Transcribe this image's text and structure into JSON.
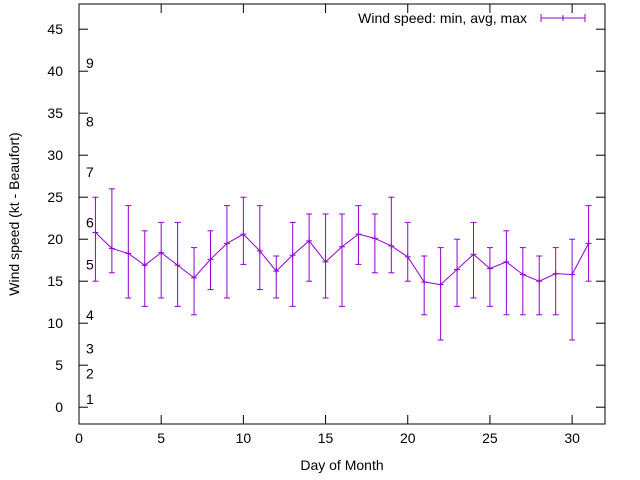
{
  "chart_data": {
    "type": "line",
    "title": "",
    "xlabel": "Day of Month",
    "ylabel": "Wind speed (kt - Beaufort)",
    "xlim": [
      0,
      32
    ],
    "ylim": [
      -2,
      48
    ],
    "x_ticks": [
      0,
      5,
      10,
      15,
      20,
      25,
      30
    ],
    "y_ticks": [
      0,
      5,
      10,
      15,
      20,
      25,
      30,
      35,
      40,
      45
    ],
    "grid": false,
    "legend_position": "top-right",
    "beaufort_labels": [
      {
        "label": "1",
        "value": 1.0
      },
      {
        "label": "2",
        "value": 4.0
      },
      {
        "label": "3",
        "value": 7.0
      },
      {
        "label": "4",
        "value": 11.0
      },
      {
        "label": "5",
        "value": 17.0
      },
      {
        "label": "6",
        "value": 22.0
      },
      {
        "label": "7",
        "value": 28.0
      },
      {
        "label": "8",
        "value": 34.0
      },
      {
        "label": "9",
        "value": 41.0
      }
    ],
    "series": [
      {
        "name": "Wind speed: min, avg, max",
        "color": "#9400d3",
        "x": [
          1,
          2,
          3,
          4,
          5,
          6,
          7,
          8,
          9,
          10,
          11,
          12,
          13,
          14,
          15,
          16,
          17,
          18,
          19,
          20,
          21,
          22,
          23,
          24,
          25,
          26,
          27,
          28,
          29,
          30,
          31
        ],
        "avg": [
          20.8,
          18.9,
          18.3,
          16.9,
          18.4,
          16.9,
          15.4,
          17.6,
          19.5,
          20.6,
          18.6,
          16.2,
          18.1,
          19.8,
          17.3,
          19.1,
          20.6,
          20.1,
          19.2,
          17.9,
          14.9,
          14.6,
          16.4,
          18.2,
          16.5,
          17.3,
          15.8,
          15.0,
          15.9,
          15.8,
          19.5
        ],
        "min": [
          15,
          16,
          13,
          12,
          13,
          12,
          11,
          14,
          13,
          17,
          14,
          13,
          12,
          15,
          13,
          12,
          17,
          16,
          16,
          15,
          11,
          8,
          12,
          13,
          12,
          11,
          11,
          11,
          11,
          8,
          15
        ],
        "max": [
          25,
          26,
          24,
          21,
          22,
          22,
          19,
          21,
          24,
          25,
          24,
          18,
          22,
          23,
          23,
          23,
          24,
          23,
          25,
          22,
          18,
          19,
          20,
          22,
          19,
          21,
          19,
          18,
          19,
          20,
          24
        ]
      }
    ]
  }
}
